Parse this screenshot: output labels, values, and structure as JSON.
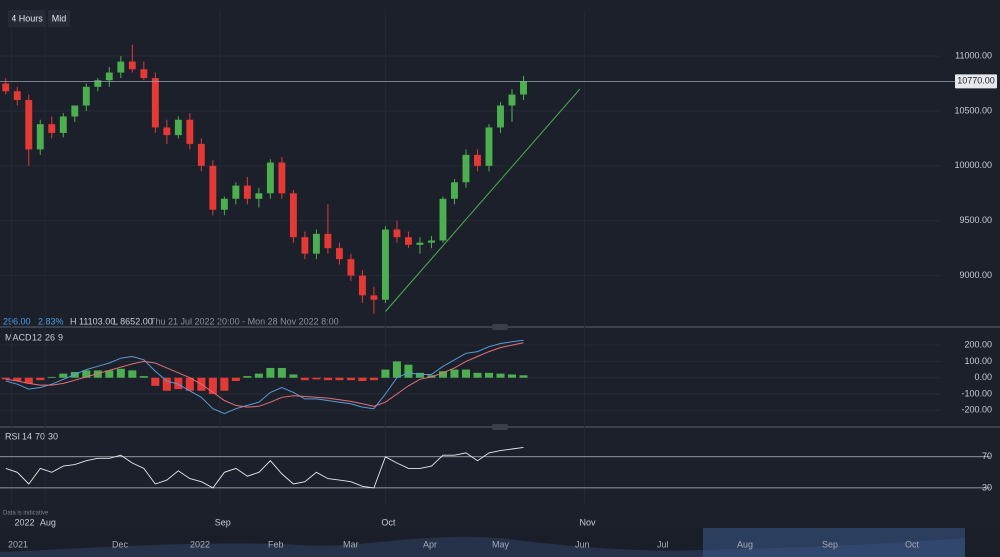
{
  "toolbar": {
    "interval": "4 Hours",
    "price_mode": "Mid"
  },
  "info": {
    "change": "296.00",
    "change_pct": "2.83%",
    "high": "H 11103.00",
    "low": "L 8652.00",
    "range": "Thu 21 Jul 2022 20:00 - Mon 28 Nov 2022 8:00"
  },
  "note": "Data is indicative",
  "navigator": {
    "labels": [
      "2021",
      "Dec",
      "2022",
      "Feb",
      "Mar",
      "Apr",
      "May",
      "Jun",
      "Jul",
      "Aug",
      "Sep",
      "Oct"
    ]
  },
  "chart_data": {
    "type": "candlestick",
    "up_color": "#4caf50",
    "down_color": "#e53935",
    "xlim": [
      -0.5,
      81.2
    ],
    "xticks": [
      {
        "value": 0.5,
        "label": "2022"
      },
      {
        "value": 3.4,
        "label": "Aug"
      },
      {
        "value": 18.6,
        "label": "Sep"
      },
      {
        "value": 33,
        "label": "Oct"
      },
      {
        "value": 50.3,
        "label": "Nov"
      }
    ],
    "ylim": [
      8550,
      11420
    ],
    "yticks": [
      {
        "value": 9000,
        "label": "9000.00"
      },
      {
        "value": 9500,
        "label": "9500.00"
      },
      {
        "value": 10000,
        "label": "10000.00"
      },
      {
        "value": 10500,
        "label": "10500.00"
      },
      {
        "value": 11000,
        "label": "11000.00"
      }
    ],
    "last_price": {
      "value": 10770,
      "label": "10770.00"
    },
    "trendline": {
      "color": "#4caf50",
      "x": [
        33,
        49.9
      ],
      "y": [
        8673,
        10700
      ]
    },
    "open": [
      10750,
      10680,
      10600,
      10150,
      10380,
      10300,
      10450,
      10550,
      10720,
      10780,
      10850,
      10950,
      10880,
      10800,
      10350,
      10280,
      10420,
      10200,
      10000,
      9600,
      9700,
      9820,
      9700,
      9750,
      10030,
      9750,
      9350,
      9200,
      9380,
      9250,
      9150,
      9000,
      8820,
      8780,
      9420,
      9350,
      9280,
      9300,
      9320,
      9700,
      9850,
      10100,
      10000,
      10350,
      10550,
      10650
    ],
    "high": [
      10800,
      10720,
      10650,
      10420,
      10450,
      10480,
      10550,
      10750,
      10800,
      10900,
      11000,
      11103,
      10950,
      10850,
      10420,
      10450,
      10480,
      10250,
      10050,
      9720,
      9850,
      9900,
      9800,
      10060,
      10080,
      9780,
      9400,
      9420,
      9650,
      9300,
      9200,
      9050,
      8900,
      9450,
      9500,
      9400,
      9350,
      9360,
      9720,
      9880,
      10150,
      10150,
      10380,
      10580,
      10700,
      10820
    ],
    "low": [
      10650,
      10550,
      10000,
      10100,
      10250,
      10260,
      10400,
      10500,
      10680,
      10720,
      10800,
      10850,
      10780,
      10300,
      10200,
      10250,
      10150,
      9950,
      9550,
      9550,
      9650,
      9650,
      9620,
      9700,
      9700,
      9300,
      9150,
      9150,
      9200,
      9100,
      8950,
      8750,
      8652,
      8750,
      9300,
      9250,
      9200,
      9250,
      9300,
      9650,
      9800,
      9950,
      9950,
      10300,
      10400,
      10600
    ],
    "close": [
      10680,
      10600,
      10150,
      10380,
      10300,
      10450,
      10550,
      10720,
      10780,
      10850,
      10950,
      10880,
      10800,
      10350,
      10280,
      10420,
      10200,
      10000,
      9600,
      9700,
      9820,
      9700,
      9750,
      10030,
      9750,
      9350,
      9200,
      9380,
      9250,
      9150,
      9000,
      8820,
      8780,
      9420,
      9350,
      9280,
      9300,
      9320,
      9700,
      9850,
      10100,
      10000,
      10350,
      10550,
      10650,
      10770
    ],
    "macd": {
      "title": "MACD",
      "params": [
        "12",
        "26",
        "9"
      ],
      "ylim": [
        -290,
        262
      ],
      "yticks": [
        {
          "value": 200,
          "label": "200.00"
        },
        {
          "value": 100,
          "label": "100.00"
        },
        {
          "value": 0,
          "label": "0.00"
        },
        {
          "value": -100,
          "label": "-100.00"
        },
        {
          "value": -200,
          "label": "-200.00"
        }
      ],
      "line_color": "#5b9bd5",
      "signal_color": "#e0707a",
      "line": [
        -20,
        -40,
        -70,
        -60,
        -40,
        -10,
        20,
        50,
        70,
        90,
        120,
        130,
        110,
        40,
        -20,
        -40,
        -80,
        -120,
        -190,
        -220,
        -190,
        -170,
        -150,
        -90,
        -60,
        -90,
        -130,
        -130,
        -140,
        -150,
        -160,
        -180,
        -190,
        -100,
        0,
        30,
        20,
        20,
        70,
        110,
        150,
        160,
        190,
        210,
        220,
        230
      ],
      "signal": [
        -10,
        -20,
        -35,
        -45,
        -45,
        -35,
        -15,
        5,
        25,
        45,
        65,
        85,
        100,
        90,
        60,
        30,
        0,
        -40,
        -90,
        -140,
        -170,
        -180,
        -175,
        -150,
        -120,
        -110,
        -115,
        -120,
        -125,
        -135,
        -145,
        -160,
        -175,
        -150,
        -100,
        -50,
        -10,
        5,
        30,
        60,
        100,
        130,
        160,
        185,
        200,
        215
      ],
      "histogram": [
        -10,
        -20,
        -35,
        -15,
        5,
        25,
        35,
        45,
        45,
        45,
        55,
        45,
        10,
        -50,
        -80,
        -70,
        -80,
        -80,
        -100,
        -80,
        -20,
        10,
        25,
        60,
        60,
        20,
        -15,
        -10,
        -15,
        -15,
        -15,
        -20,
        -15,
        50,
        100,
        80,
        30,
        15,
        40,
        50,
        50,
        30,
        30,
        25,
        20,
        15
      ]
    },
    "rsi": {
      "title": "RSI",
      "params": [
        "14",
        "70",
        "30"
      ],
      "ylim": [
        8,
        98
      ],
      "yticks": [
        70,
        30
      ],
      "color": "#e8e8e8",
      "values": [
        55,
        50,
        35,
        55,
        50,
        58,
        60,
        65,
        68,
        68,
        72,
        62,
        55,
        35,
        40,
        52,
        42,
        38,
        30,
        50,
        55,
        45,
        50,
        65,
        48,
        35,
        38,
        50,
        42,
        40,
        38,
        32,
        30,
        70,
        62,
        55,
        55,
        58,
        72,
        72,
        75,
        65,
        75,
        78,
        80,
        82
      ]
    }
  }
}
